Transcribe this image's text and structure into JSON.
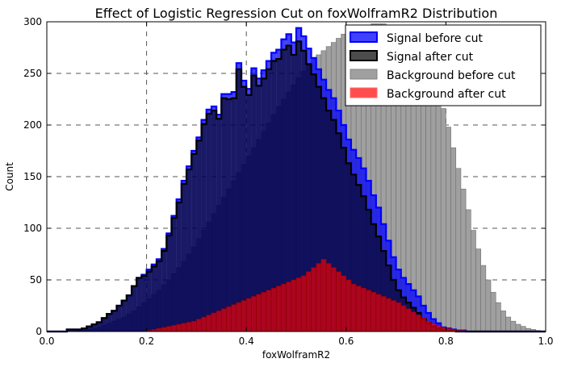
{
  "chart_data": {
    "type": "histogram",
    "title": "Effect of Logistic Regression Cut on foxWolframR2 Distribution",
    "xlabel": "foxWolframR2",
    "ylabel": "Count",
    "xlim": [
      0.0,
      1.0
    ],
    "ylim": [
      0,
      300
    ],
    "xticks": [
      "0.0",
      "0.2",
      "0.4",
      "0.6",
      "0.8",
      "1.0"
    ],
    "yticks": [
      "0",
      "50",
      "100",
      "150",
      "200",
      "250",
      "300"
    ],
    "grid": true,
    "legend_position": "top-right",
    "x": [
      0.005,
      0.015,
      0.025,
      0.035,
      0.045,
      0.055,
      0.065,
      0.075,
      0.085,
      0.095,
      0.105,
      0.115,
      0.125,
      0.135,
      0.145,
      0.155,
      0.165,
      0.175,
      0.185,
      0.195,
      0.205,
      0.215,
      0.225,
      0.235,
      0.245,
      0.255,
      0.265,
      0.275,
      0.285,
      0.295,
      0.305,
      0.315,
      0.325,
      0.335,
      0.345,
      0.355,
      0.365,
      0.375,
      0.385,
      0.395,
      0.405,
      0.415,
      0.425,
      0.435,
      0.445,
      0.455,
      0.465,
      0.475,
      0.485,
      0.495,
      0.505,
      0.515,
      0.525,
      0.535,
      0.545,
      0.555,
      0.565,
      0.575,
      0.585,
      0.595,
      0.605,
      0.615,
      0.625,
      0.635,
      0.645,
      0.655,
      0.665,
      0.675,
      0.685,
      0.695,
      0.705,
      0.715,
      0.725,
      0.735,
      0.745,
      0.755,
      0.765,
      0.775,
      0.785,
      0.795,
      0.805,
      0.815,
      0.825,
      0.835,
      0.845,
      0.855,
      0.865,
      0.875,
      0.885,
      0.895,
      0.905,
      0.915,
      0.925,
      0.935,
      0.945,
      0.955,
      0.965,
      0.975,
      0.985,
      0.995
    ],
    "series": [
      {
        "name": "Signal before cut",
        "color": "#0000ff",
        "values": [
          0,
          0,
          0,
          0,
          2,
          2,
          2,
          3,
          5,
          7,
          9,
          13,
          17,
          20,
          25,
          30,
          35,
          44,
          52,
          55,
          60,
          65,
          70,
          80,
          95,
          112,
          128,
          146,
          160,
          175,
          188,
          205,
          215,
          218,
          210,
          230,
          230,
          232,
          260,
          243,
          235,
          255,
          245,
          253,
          262,
          270,
          273,
          283,
          288,
          280,
          294,
          286,
          274,
          265,
          254,
          244,
          234,
          226,
          214,
          200,
          186,
          176,
          168,
          158,
          146,
          132,
          120,
          104,
          88,
          72,
          60,
          52,
          46,
          40,
          34,
          25,
          18,
          12,
          8,
          4,
          3,
          2,
          1,
          1,
          0,
          0,
          0,
          0,
          0,
          0,
          0,
          0,
          0,
          0,
          0,
          0,
          0,
          0,
          0,
          0
        ]
      },
      {
        "name": "Signal after cut",
        "color": "#000000",
        "values": [
          0,
          0,
          0,
          0,
          2,
          2,
          2,
          3,
          5,
          7,
          9,
          13,
          17,
          20,
          25,
          30,
          35,
          44,
          52,
          54,
          58,
          63,
          68,
          78,
          93,
          110,
          125,
          143,
          157,
          172,
          185,
          201,
          211,
          214,
          206,
          226,
          225,
          226,
          254,
          237,
          229,
          248,
          238,
          245,
          254,
          262,
          264,
          273,
          277,
          268,
          281,
          272,
          259,
          249,
          237,
          226,
          214,
          205,
          192,
          178,
          163,
          152,
          142,
          131,
          118,
          104,
          92,
          78,
          64,
          50,
          40,
          33,
          28,
          23,
          18,
          12,
          8,
          5,
          3,
          2,
          1,
          1,
          0,
          0,
          0,
          0,
          0,
          0,
          0,
          0,
          0,
          0,
          0,
          0,
          0,
          0,
          0,
          0,
          0,
          0
        ]
      },
      {
        "name": "Background before cut",
        "color": "#808080",
        "values": [
          0,
          0,
          0,
          0,
          0,
          0,
          1,
          1,
          2,
          3,
          4,
          6,
          8,
          10,
          12,
          14,
          17,
          20,
          24,
          28,
          32,
          36,
          40,
          45,
          50,
          56,
          62,
          68,
          75,
          82,
          90,
          98,
          106,
          114,
          122,
          130,
          138,
          146,
          154,
          162,
          170,
          178,
          186,
          194,
          202,
          210,
          218,
          225,
          232,
          239,
          246,
          252,
          258,
          264,
          268,
          272,
          276,
          280,
          284,
          288,
          290,
          292,
          294,
          296,
          297,
          298,
          298,
          298,
          297,
          296,
          294,
          291,
          288,
          282,
          276,
          268,
          258,
          246,
          232,
          216,
          198,
          178,
          158,
          138,
          118,
          98,
          80,
          64,
          50,
          38,
          28,
          20,
          14,
          10,
          7,
          5,
          3,
          2,
          1,
          0
        ]
      },
      {
        "name": "Background after cut",
        "color": "#ff0000",
        "values": [
          0,
          0,
          0,
          0,
          0,
          0,
          0,
          0,
          0,
          0,
          0,
          0,
          0,
          0,
          0,
          0,
          0,
          0,
          0,
          0,
          1,
          2,
          3,
          4,
          5,
          6,
          7,
          8,
          9,
          10,
          12,
          14,
          16,
          18,
          20,
          22,
          24,
          26,
          28,
          30,
          32,
          34,
          36,
          38,
          40,
          42,
          44,
          46,
          48,
          50,
          52,
          54,
          58,
          62,
          66,
          70,
          66,
          62,
          58,
          54,
          50,
          46,
          44,
          42,
          40,
          38,
          36,
          34,
          32,
          30,
          28,
          25,
          22,
          19,
          16,
          13,
          10,
          8,
          6,
          4,
          3,
          2,
          1,
          1,
          0,
          0,
          0,
          0,
          0,
          0,
          0,
          0,
          0,
          0,
          0,
          0,
          0,
          0,
          0,
          0
        ]
      }
    ]
  }
}
